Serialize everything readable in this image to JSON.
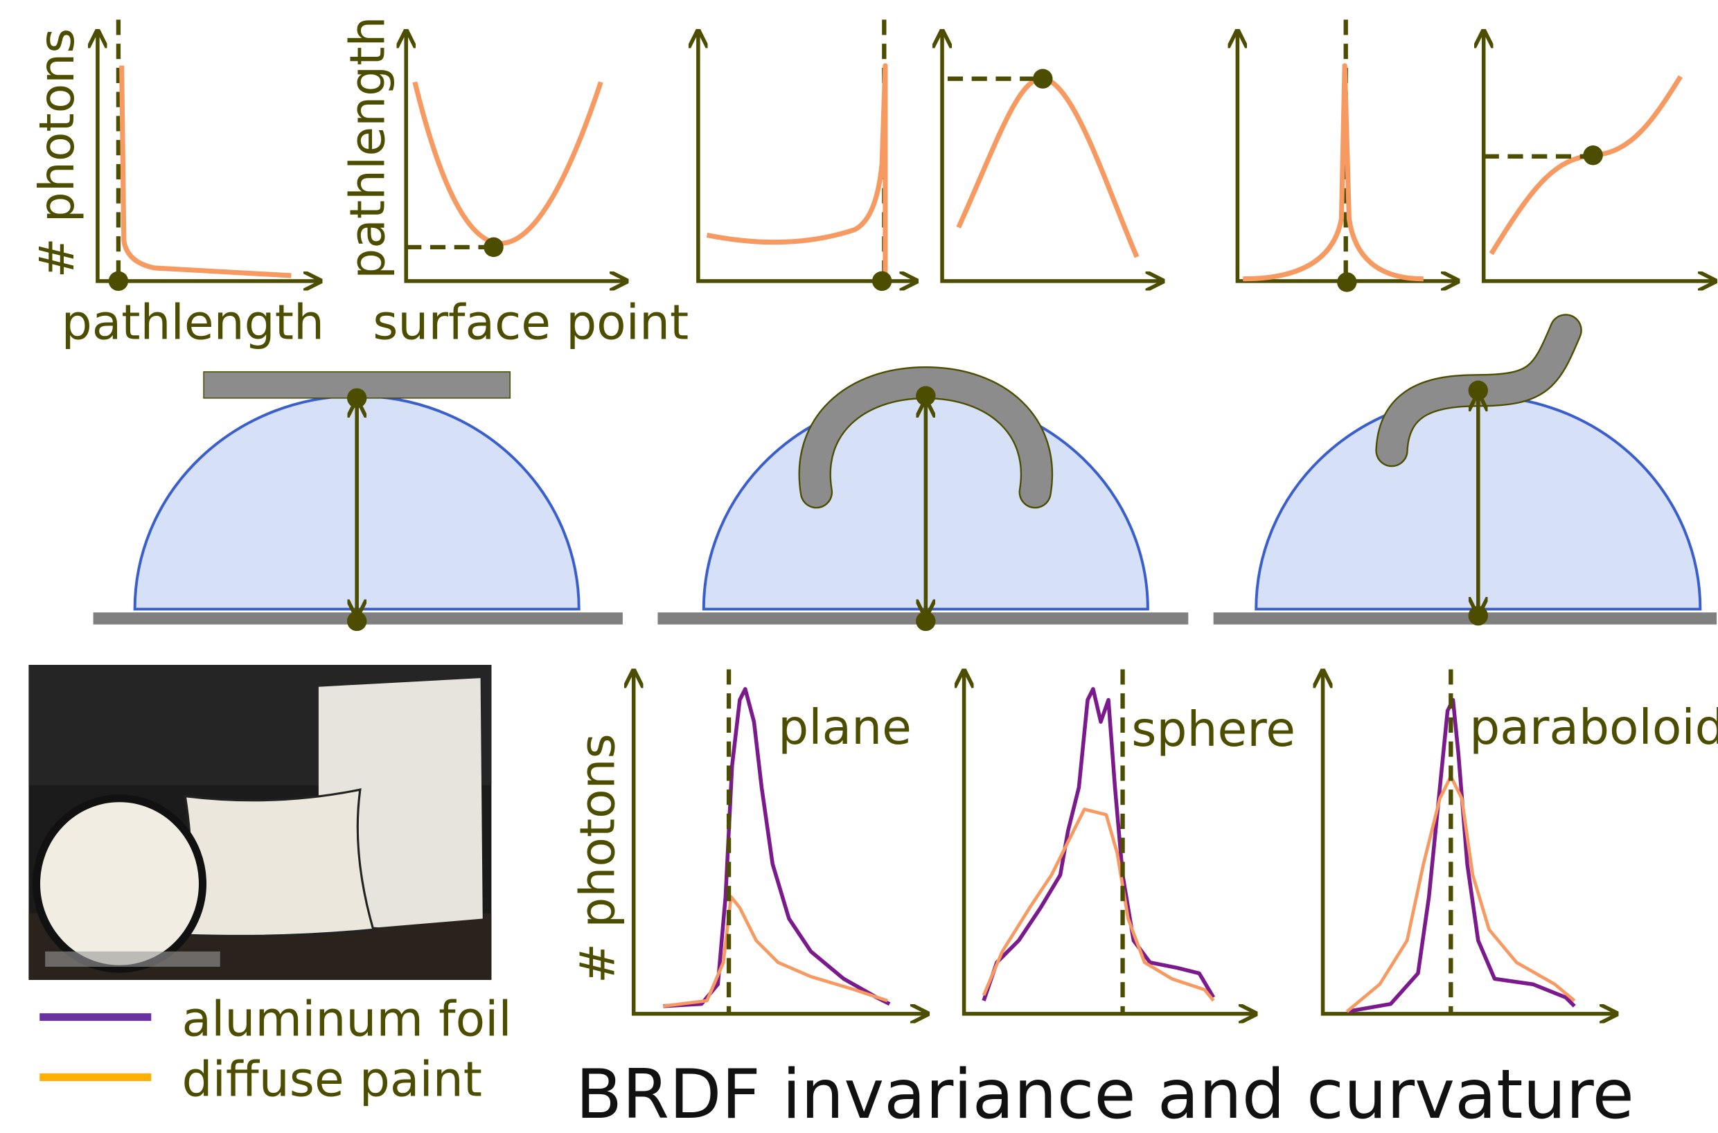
{
  "top_plots": {
    "y_label_1": "# photons",
    "x_label_1": "pathlength",
    "y_label_2": "pathlength",
    "x_label_2": "surface point"
  },
  "bottom_plots": {
    "y_label": "# photons",
    "labels": [
      "plane",
      "sphere",
      "paraboloid"
    ]
  },
  "legend": [
    "aluminum foil",
    "diffuse paint"
  ],
  "title": "BRDF invariance and curvature"
}
